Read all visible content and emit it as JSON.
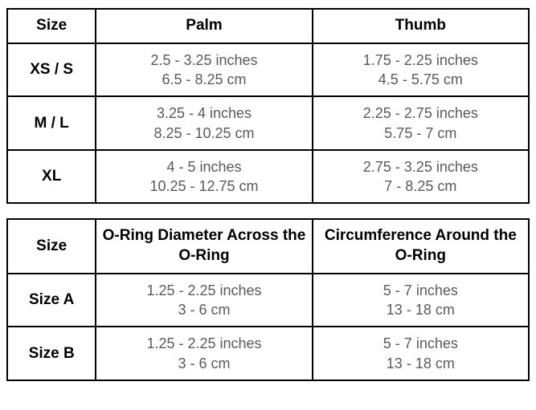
{
  "table1": {
    "headers": {
      "size": "Size",
      "col2": "Palm",
      "col3": "Thumb"
    },
    "rows": [
      {
        "size": "XS / S",
        "col2_inches": "2.5 - 3.25 inches",
        "col2_cm": "6.5 - 8.25 cm",
        "col3_inches": "1.75 - 2.25 inches",
        "col3_cm": "4.5 - 5.75 cm"
      },
      {
        "size": "M / L",
        "col2_inches": "3.25 - 4 inches",
        "col2_cm": "8.25 - 10.25 cm",
        "col3_inches": "2.25 - 2.75 inches",
        "col3_cm": "5.75 - 7 cm"
      },
      {
        "size": "XL",
        "col2_inches": "4 - 5 inches",
        "col2_cm": "10.25 - 12.75 cm",
        "col3_inches": "2.75 - 3.25 inches",
        "col3_cm": "7 - 8.25 cm"
      }
    ]
  },
  "table2": {
    "headers": {
      "size": "Size",
      "col2": "O-Ring Diameter Across the O-Ring",
      "col3": "Circumference Around the O-Ring"
    },
    "rows": [
      {
        "size": "Size A",
        "col2_inches": "1.25 - 2.25 inches",
        "col2_cm": "3 - 6 cm",
        "col3_inches": "5 - 7 inches",
        "col3_cm": "13 - 18 cm"
      },
      {
        "size": "Size B",
        "col2_inches": "1.25 - 2.25 inches",
        "col2_cm": "3 - 6 cm",
        "col3_inches": "5 - 7 inches",
        "col3_cm": "13 - 18 cm"
      }
    ]
  },
  "colors": {
    "border": "#000000",
    "header_text": "#000000",
    "data_text": "#5a5a5a",
    "background": "#ffffff"
  },
  "typography": {
    "header_fontsize": 19,
    "header_weight": "bold",
    "data_fontsize": 18,
    "data_weight": "normal",
    "font_family": "Arial"
  }
}
